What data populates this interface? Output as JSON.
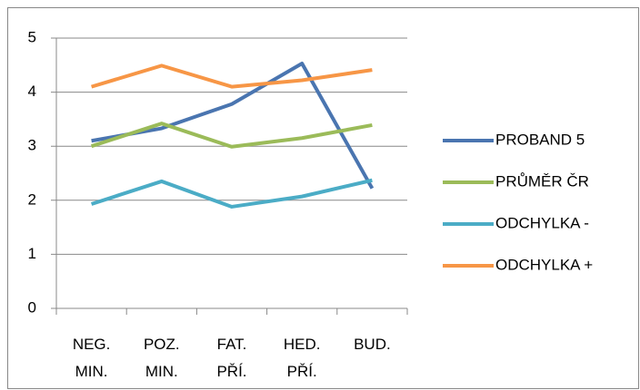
{
  "chart_data": {
    "type": "line",
    "categories": [
      "NEG. MIN.",
      "POZ. MIN.",
      "FAT. PŘÍ.",
      "HED. PŘÍ.",
      "BUD."
    ],
    "series": [
      {
        "name": "PROBAND 5",
        "color": "#4a75b0",
        "values": [
          3.1,
          3.33,
          3.78,
          4.53,
          2.22
        ]
      },
      {
        "name": "PRŮMĚR ČR",
        "color": "#9bbb59",
        "values": [
          3.0,
          3.42,
          2.99,
          3.15,
          3.39
        ]
      },
      {
        "name": "ODCHYLKA -",
        "color": "#4bacc6",
        "values": [
          1.93,
          2.35,
          1.88,
          2.07,
          2.37
        ]
      },
      {
        "name": "ODCHYLKA +",
        "color": "#f79646",
        "values": [
          4.1,
          4.49,
          4.1,
          4.22,
          4.41
        ]
      }
    ],
    "ylim": [
      0,
      5
    ],
    "yticks": [
      0,
      1,
      2,
      3,
      4,
      5
    ],
    "grid": true,
    "legend": "right"
  }
}
